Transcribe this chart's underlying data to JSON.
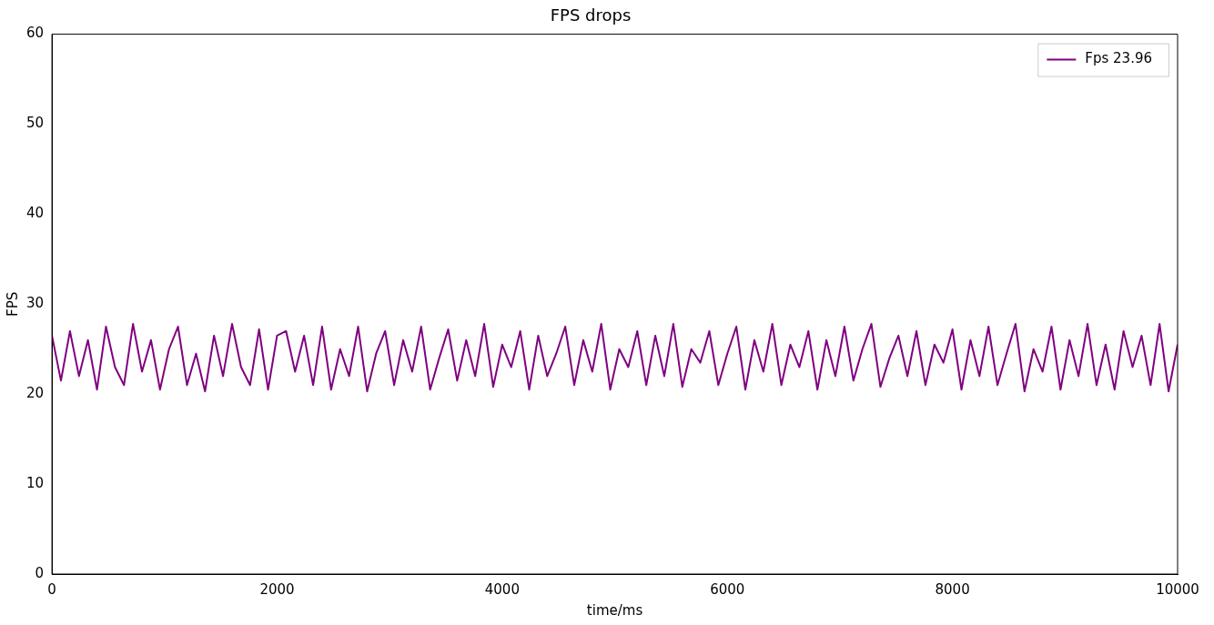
{
  "chart_data": {
    "type": "line",
    "title": "FPS drops",
    "xlabel": "time/ms",
    "ylabel": "FPS",
    "x": [
      0,
      80,
      160,
      240,
      320,
      400,
      480,
      560,
      640,
      720,
      800,
      880,
      960,
      1040,
      1120,
      1200,
      1280,
      1360,
      1440,
      1520,
      1600,
      1680,
      1760,
      1840,
      1920,
      2000,
      2080,
      2160,
      2240,
      2320,
      2400,
      2480,
      2560,
      2640,
      2720,
      2800,
      2880,
      2960,
      3040,
      3120,
      3200,
      3280,
      3360,
      3440,
      3520,
      3600,
      3680,
      3760,
      3840,
      3920,
      4000,
      4080,
      4160,
      4240,
      4320,
      4400,
      4480,
      4560,
      4640,
      4720,
      4800,
      4880,
      4960,
      5040,
      5120,
      5200,
      5280,
      5360,
      5440,
      5520,
      5600,
      5680,
      5760,
      5840,
      5920,
      6000,
      6080,
      6160,
      6240,
      6320,
      6400,
      6480,
      6560,
      6640,
      6720,
      6800,
      6880,
      6960,
      7040,
      7120,
      7200,
      7280,
      7360,
      7440,
      7520,
      7600,
      7680,
      7760,
      7840,
      7920,
      8000,
      8080,
      8160,
      8240,
      8320,
      8400,
      8480,
      8560,
      8640,
      8720,
      8800,
      8880,
      8960,
      9040,
      9120,
      9200,
      9280,
      9360,
      9440,
      9520,
      9600,
      9680,
      9760,
      9840,
      9920,
      10000
    ],
    "series": [
      {
        "name": "Fps 23.96",
        "color": "#800080",
        "values": [
          26.5,
          21.5,
          27,
          22,
          26,
          20.5,
          27.5,
          23,
          21,
          27.8,
          22.5,
          26,
          20.5,
          25,
          27.5,
          21,
          24.5,
          20.3,
          26.5,
          22,
          27.8,
          23,
          21,
          27.2,
          20.5,
          26.5,
          27,
          22.5,
          26.5,
          21,
          27.5,
          20.5,
          25,
          22,
          27.5,
          20.3,
          24.5,
          27,
          21,
          26,
          22.5,
          27.5,
          20.5,
          24,
          27.2,
          21.5,
          26,
          22,
          27.8,
          20.8,
          25.5,
          23,
          27,
          20.5,
          26.5,
          22,
          24.5,
          27.5,
          21,
          26,
          22.5,
          27.8,
          20.5,
          25,
          23,
          27,
          21,
          26.5,
          22,
          27.8,
          20.8,
          25,
          23.5,
          27,
          21,
          24.5,
          27.5,
          20.5,
          26,
          22.5,
          27.8,
          21,
          25.5,
          23,
          27,
          20.5,
          26,
          22,
          27.5,
          21.5,
          25,
          27.8,
          20.8,
          24,
          26.5,
          22,
          27,
          21,
          25.5,
          23.5,
          27.2,
          20.5,
          26,
          22,
          27.5,
          21,
          24.5,
          27.8,
          20.3,
          25,
          22.5,
          27.5,
          20.5,
          26,
          22,
          27.8,
          21,
          25.5,
          20.5,
          27,
          23,
          26.5,
          21,
          27.8,
          20.3,
          25.5
        ]
      }
    ],
    "xlim": [
      0,
      10000
    ],
    "xticks": [
      0,
      2000,
      4000,
      6000,
      8000,
      10000
    ],
    "ylim": [
      0,
      60
    ],
    "yticks": [
      0,
      10,
      20,
      30,
      40,
      50,
      60
    ],
    "legend": "top right",
    "grid": false,
    "marker": "none",
    "line_style": "solid"
  }
}
